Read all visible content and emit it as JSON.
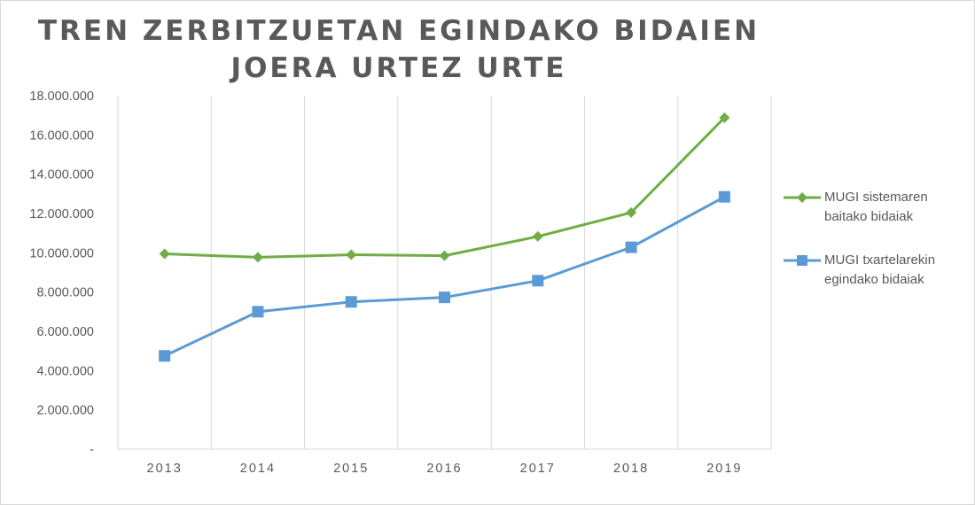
{
  "chart_data": {
    "type": "line",
    "title_lines": [
      "TREN ZERBITZUETAN EGINDAKO BIDAIEN",
      "JOERA URTEZ URTE"
    ],
    "categories": [
      "2013",
      "2014",
      "2015",
      "2016",
      "2017",
      "2018",
      "2019"
    ],
    "y_ticks": [
      "-",
      "2.000.000",
      "4.000.000",
      "6.000.000",
      "8.000.000",
      "10.000.000",
      "12.000.000",
      "14.000.000",
      "16.000.000",
      "18.000.000"
    ],
    "ylim": [
      0,
      18000000
    ],
    "grid": "vertical",
    "legend_position": "right",
    "series": [
      {
        "name_lines": [
          "MUGI sistemaren",
          "baitako bidaiak"
        ],
        "color": "#70ad47",
        "marker": "diamond",
        "values": [
          9950000,
          9770000,
          9900000,
          9850000,
          10830000,
          12050000,
          16880000
        ]
      },
      {
        "name_lines": [
          "MUGI txartelarekin",
          "egindako bidaiak"
        ],
        "color": "#5b9bd5",
        "marker": "square",
        "values": [
          4750000,
          7000000,
          7500000,
          7730000,
          8580000,
          10280000,
          12850000
        ]
      }
    ]
  }
}
